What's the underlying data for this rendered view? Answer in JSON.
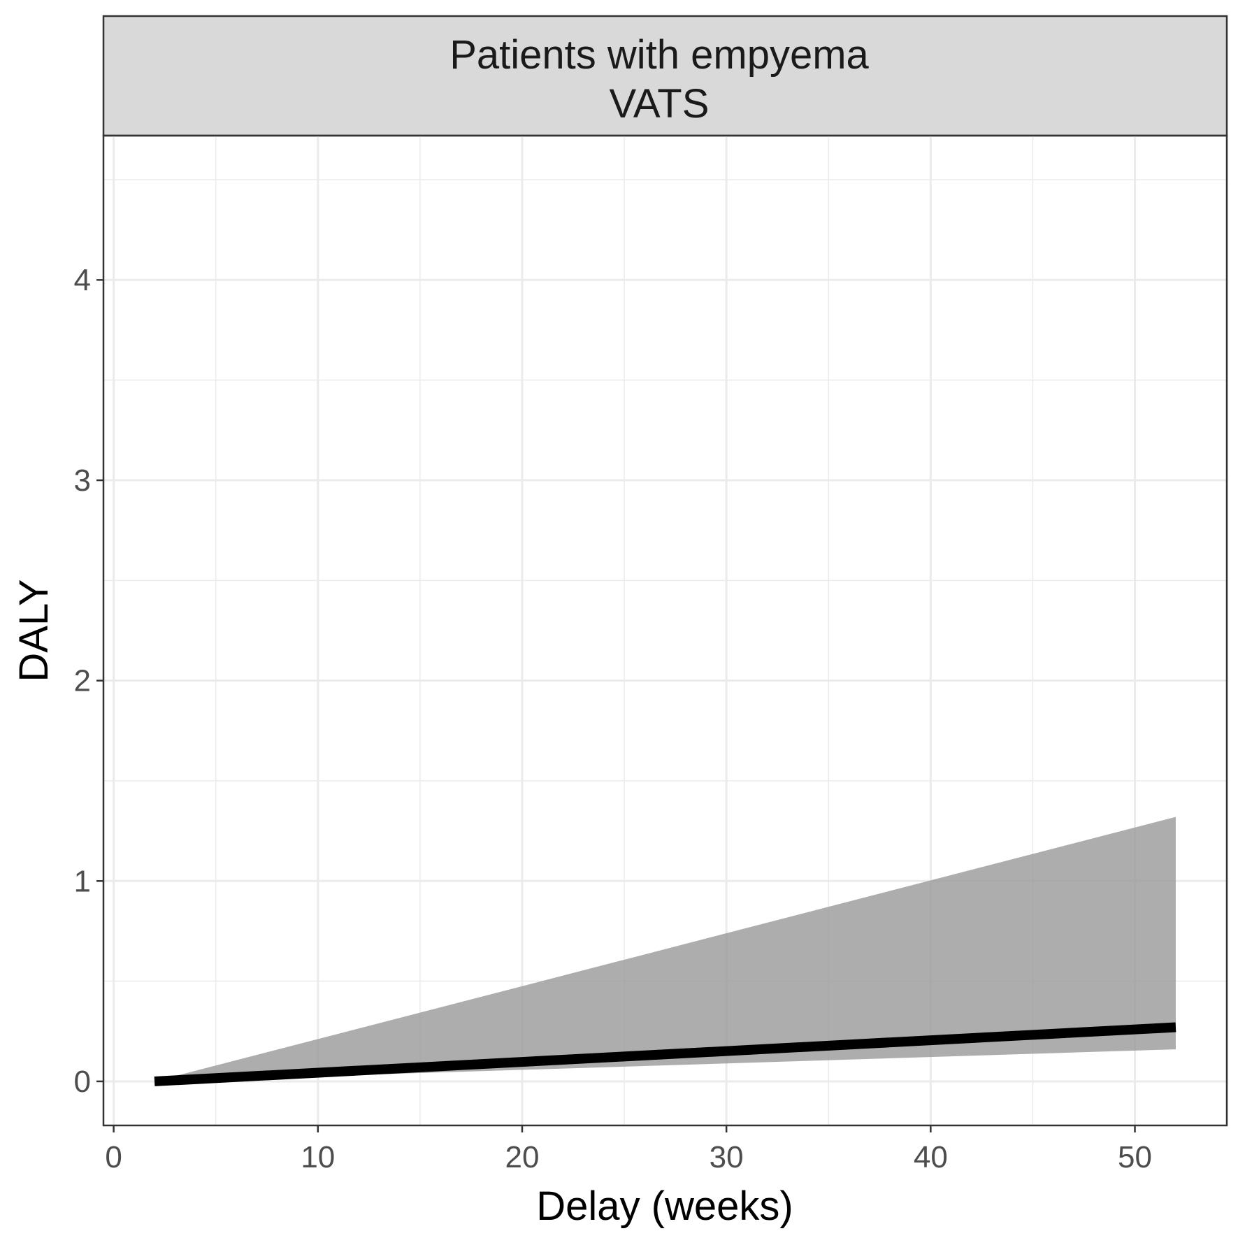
{
  "chart_data": {
    "type": "area",
    "panel_title": [
      "Patients with empyema",
      "VATS"
    ],
    "xlabel": "Delay (weeks)",
    "ylabel": "DALY",
    "xlim": [
      -0.5,
      54.5
    ],
    "ylim": [
      -0.22,
      4.72
    ],
    "x_ticks": [
      0,
      10,
      20,
      30,
      40,
      50
    ],
    "y_ticks": [
      0,
      1,
      2,
      3,
      4
    ],
    "x_minor": [
      5,
      15,
      25,
      35,
      45
    ],
    "y_minor": [
      0.5,
      1.5,
      2.5,
      3.5,
      4.5
    ],
    "grid": true,
    "series": [
      {
        "x": [
          2,
          52
        ],
        "y": [
          0,
          0.27
        ],
        "ymin": [
          0,
          0.16
        ],
        "ymax": [
          0,
          1.32
        ]
      }
    ],
    "colors": {
      "line": "#000000",
      "ribbon": "#999999",
      "strip_bg": "#d9d9d9",
      "grid": "#ebebeb",
      "border": "#333333"
    }
  }
}
